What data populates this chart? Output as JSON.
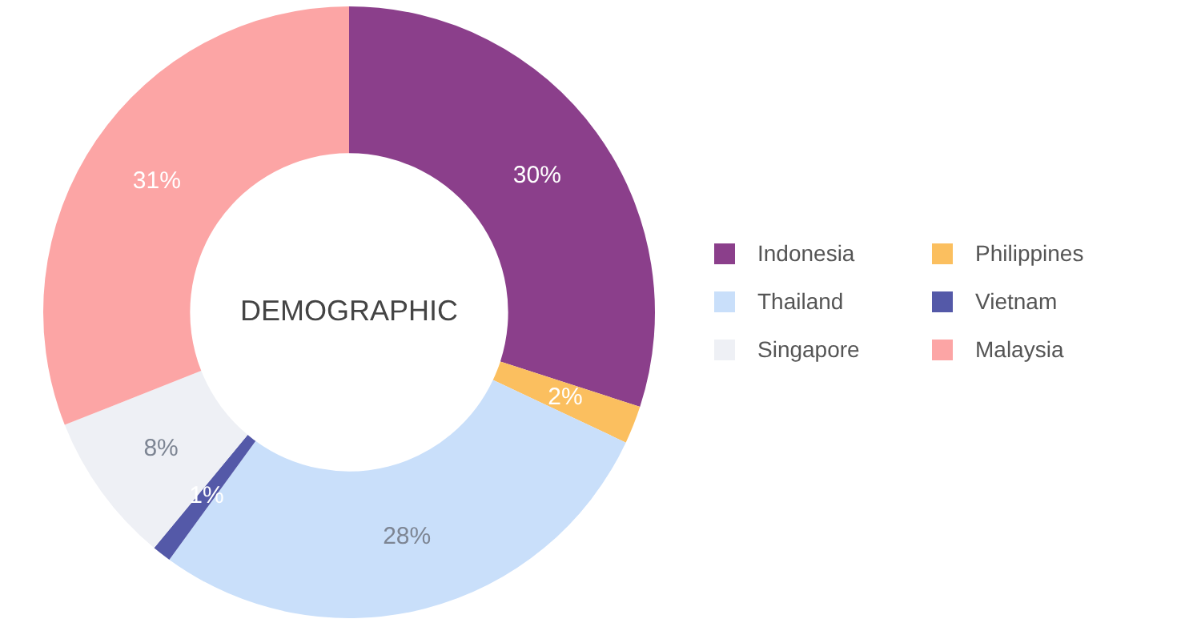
{
  "chart_data": {
    "type": "donut",
    "title": "DEMOGRAPHIC",
    "categories": [
      "Indonesia",
      "Philippines",
      "Thailand",
      "Vietnam",
      "Singapore",
      "Malaysia"
    ],
    "values": [
      30,
      2,
      28,
      1,
      8,
      31
    ],
    "value_labels": [
      "30%",
      "2%",
      "28%",
      "1%",
      "8%",
      "31%"
    ],
    "colors": [
      "#8b3f8b",
      "#fbbf5f",
      "#c9dffa",
      "#5459a8",
      "#eef0f5",
      "#fca5a5"
    ],
    "legend": "right"
  }
}
